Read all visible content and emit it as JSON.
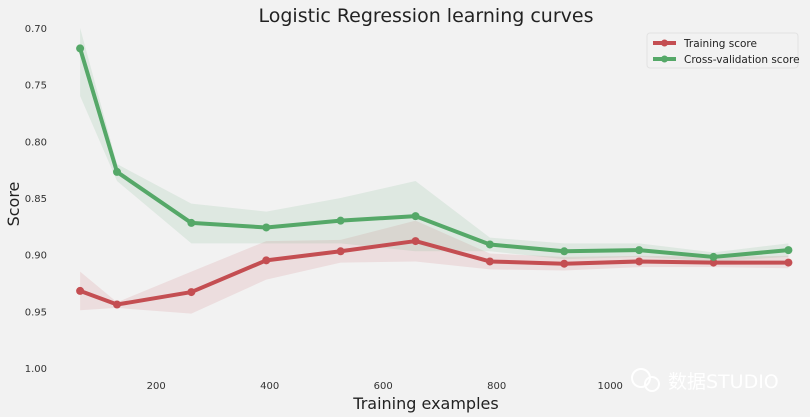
{
  "chart_data": {
    "type": "line",
    "title": "Logistic Regression learning curves",
    "xlabel": "Training examples",
    "ylabel": "Score",
    "x": [
      66,
      131,
      262,
      394,
      525,
      657,
      788,
      919,
      1051,
      1182,
      1314
    ],
    "xlim": [
      20,
      1345
    ],
    "ylim": [
      1.0,
      0.7
    ],
    "xticks": [
      200,
      400,
      600,
      800,
      1000
    ],
    "xtick_labels": [
      "200",
      "400",
      "600",
      "800",
      "1000"
    ],
    "yticks": [
      0.7,
      0.75,
      0.8,
      0.85,
      0.9,
      0.95,
      1.0
    ],
    "ytick_labels": [
      "0.70",
      "0.75",
      "0.80",
      "0.85",
      "0.90",
      "0.95",
      "1.00"
    ],
    "grid": false,
    "legend_position": "top-right",
    "series": [
      {
        "name": "Training score",
        "color": "#c44e52",
        "values": [
          0.932,
          0.944,
          0.933,
          0.905,
          0.897,
          0.888,
          0.906,
          0.908,
          0.906,
          0.907,
          0.907
        ],
        "band_low": [
          0.915,
          0.942,
          0.915,
          0.888,
          0.887,
          0.87,
          0.899,
          0.902,
          0.901,
          0.902,
          0.901
        ],
        "band_high": [
          0.949,
          0.947,
          0.952,
          0.922,
          0.907,
          0.906,
          0.913,
          0.914,
          0.911,
          0.911,
          0.912
        ]
      },
      {
        "name": "Cross-validation score",
        "color": "#55a868",
        "values": [
          0.718,
          0.827,
          0.872,
          0.876,
          0.87,
          0.866,
          0.891,
          0.897,
          0.896,
          0.902,
          0.896
        ],
        "band_low": [
          0.7,
          0.82,
          0.855,
          0.862,
          0.85,
          0.835,
          0.885,
          0.89,
          0.89,
          0.898,
          0.89
        ],
        "band_high": [
          0.76,
          0.835,
          0.89,
          0.89,
          0.89,
          0.897,
          0.897,
          0.904,
          0.902,
          0.906,
          0.902
        ]
      }
    ]
  },
  "watermark": "数据STUDIO"
}
